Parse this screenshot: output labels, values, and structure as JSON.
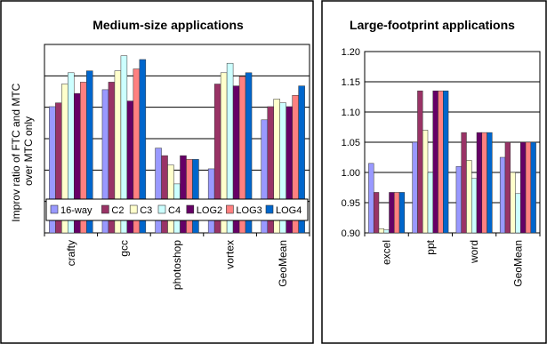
{
  "series_colors": [
    "#9999ff",
    "#993366",
    "#ffffcc",
    "#ccffff",
    "#660066",
    "#ff8080",
    "#0066cc"
  ],
  "chart_data": [
    {
      "type": "bar",
      "title": "Medium-size applications",
      "ylabel": "Improv ratio of FTC and MTC over MTC only",
      "ylabel_lines": [
        "Improv ratio  of  FTC and  MTC",
        "over MTC only"
      ],
      "ylim": [
        0,
        1
      ],
      "grid": true,
      "show_yticks": false,
      "legend": "bottom-inside",
      "categories": [
        "crafty",
        "gcc",
        "photoshop",
        "vortex",
        "GeoMean"
      ],
      "series": [
        {
          "name": "16-way",
          "values": [
            0.67,
            0.76,
            0.45,
            0.34,
            0.6
          ]
        },
        {
          "name": "C2",
          "values": [
            0.69,
            0.8,
            0.41,
            0.79,
            0.67
          ]
        },
        {
          "name": "C3",
          "values": [
            0.79,
            0.86,
            0.36,
            0.85,
            0.71
          ]
        },
        {
          "name": "C4",
          "values": [
            0.85,
            0.94,
            0.26,
            0.9,
            0.69
          ]
        },
        {
          "name": "LOG2",
          "values": [
            0.74,
            0.7,
            0.41,
            0.78,
            0.67
          ]
        },
        {
          "name": "LOG3",
          "values": [
            0.8,
            0.87,
            0.39,
            0.83,
            0.73
          ]
        },
        {
          "name": "LOG4",
          "values": [
            0.86,
            0.92,
            0.39,
            0.85,
            0.78
          ]
        }
      ]
    },
    {
      "type": "bar",
      "title": "Large-footprint applications",
      "ylim": [
        0.9,
        1.2
      ],
      "yticks": [
        "1.20",
        "1.15",
        "1.10",
        "1.05",
        "1.00",
        "0.95",
        "0.90"
      ],
      "grid": true,
      "categories": [
        "excel",
        "ppt",
        "word",
        "GeoMean"
      ],
      "series": [
        {
          "name": "16-way",
          "values": [
            1.015,
            1.05,
            1.01,
            1.025
          ]
        },
        {
          "name": "C2",
          "values": [
            0.967,
            1.135,
            1.066,
            1.05
          ]
        },
        {
          "name": "C3",
          "values": [
            0.907,
            1.07,
            1.02,
            1.0
          ]
        },
        {
          "name": "C4",
          "values": [
            0.905,
            1.0,
            0.99,
            0.965
          ]
        },
        {
          "name": "LOG2",
          "values": [
            0.967,
            1.135,
            1.066,
            1.05
          ]
        },
        {
          "name": "LOG3",
          "values": [
            0.967,
            1.135,
            1.066,
            1.05
          ]
        },
        {
          "name": "LOG4",
          "values": [
            0.967,
            1.135,
            1.066,
            1.05
          ]
        }
      ]
    }
  ]
}
